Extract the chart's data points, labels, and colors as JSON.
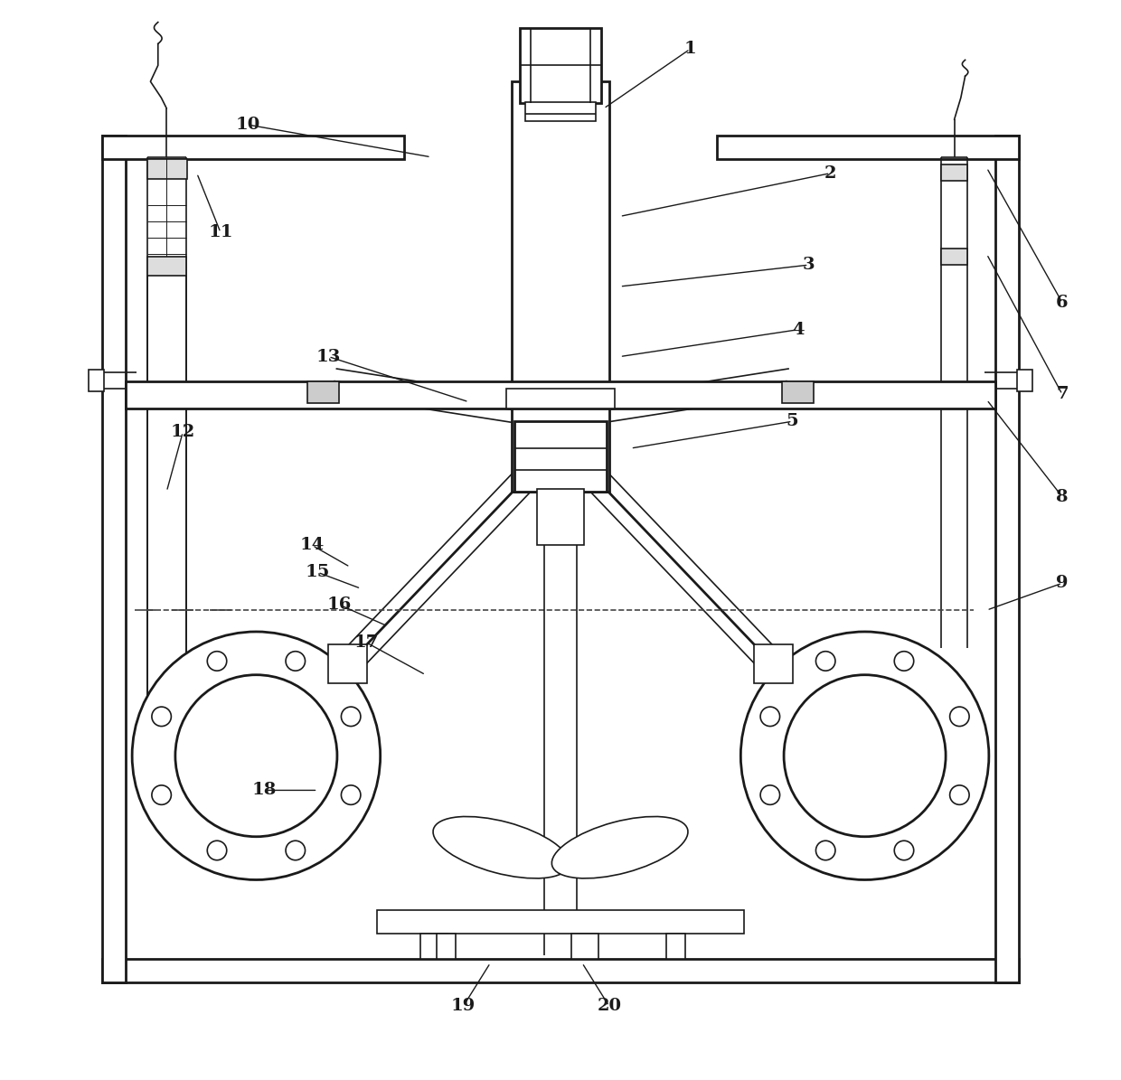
{
  "background_color": "#ffffff",
  "line_color": "#1a1a1a",
  "fig_width": 12.4,
  "fig_height": 11.95,
  "label_positions": {
    "1": [
      0.62,
      0.955,
      0.54,
      0.9
    ],
    "2": [
      0.75,
      0.84,
      0.555,
      0.8
    ],
    "3": [
      0.73,
      0.755,
      0.555,
      0.735
    ],
    "4": [
      0.72,
      0.695,
      0.555,
      0.67
    ],
    "5": [
      0.715,
      0.61,
      0.565,
      0.585
    ],
    "6": [
      0.965,
      0.72,
      0.895,
      0.845
    ],
    "7": [
      0.965,
      0.635,
      0.895,
      0.765
    ],
    "8": [
      0.965,
      0.54,
      0.895,
      0.63
    ],
    "9": [
      0.965,
      0.46,
      0.895,
      0.435
    ],
    "10": [
      0.21,
      0.885,
      0.38,
      0.855
    ],
    "11": [
      0.185,
      0.785,
      0.163,
      0.84
    ],
    "12": [
      0.15,
      0.6,
      0.135,
      0.545
    ],
    "13": [
      0.285,
      0.67,
      0.415,
      0.628
    ],
    "14": [
      0.27,
      0.495,
      0.305,
      0.475
    ],
    "15": [
      0.275,
      0.47,
      0.315,
      0.455
    ],
    "16": [
      0.295,
      0.44,
      0.34,
      0.42
    ],
    "17": [
      0.32,
      0.405,
      0.375,
      0.375
    ],
    "18": [
      0.225,
      0.268,
      0.275,
      0.268
    ],
    "19": [
      0.41,
      0.068,
      0.435,
      0.108
    ],
    "20": [
      0.545,
      0.068,
      0.52,
      0.108
    ]
  }
}
